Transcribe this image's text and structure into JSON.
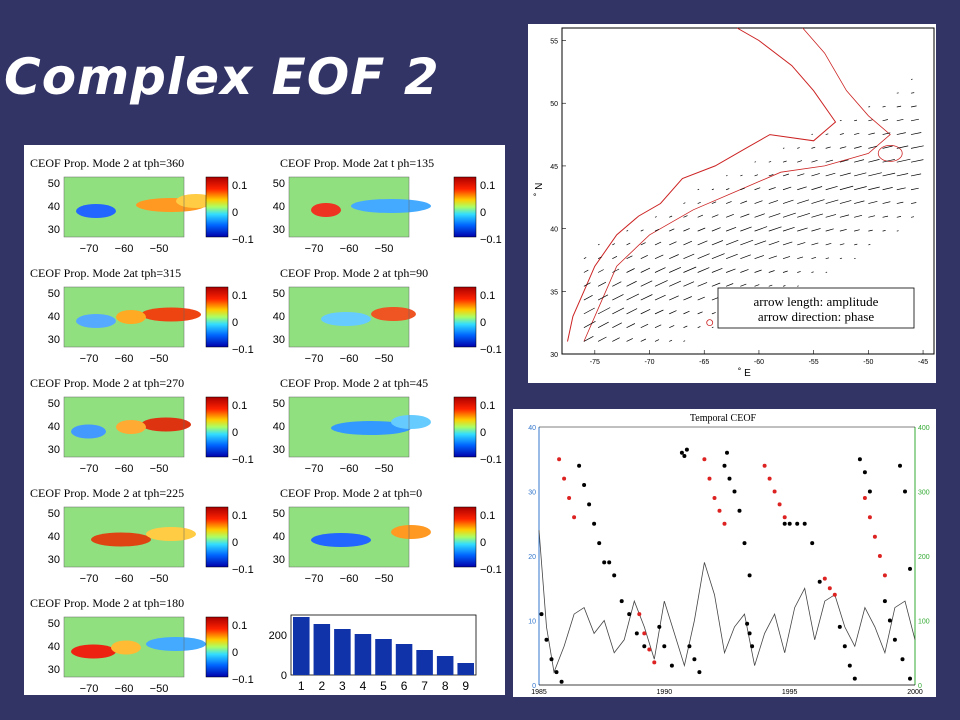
{
  "slide": {
    "title": "Complex EOF 2",
    "colors": {
      "background": "#333466",
      "map_green": "#90e080",
      "coast": "#cc2222",
      "black_series": "#000000",
      "red_series": "#dd2222",
      "bar": "#1133aa"
    }
  },
  "left_panel": {
    "colorbar_ticks": [
      "0.1",
      "0",
      "−0.1"
    ],
    "ytick_labels": [
      "50",
      "40",
      "30"
    ],
    "xtick_labels": [
      "−70",
      "−60",
      "−50"
    ],
    "maps": [
      {
        "title": "CEOF Prop. Mode 2 at tph=360"
      },
      {
        "title": "CEOF Prop. Mode 2at t ph=135"
      },
      {
        "title": "CEOF Prop. Mode 2at tph=315"
      },
      {
        "title": "CEOF Prop. Mode 2 at tph=90"
      },
      {
        "title": "CEOF Prop. Mode 2 at  tph=270"
      },
      {
        "title": "CEOF Prop. Mode 2 at tph=45"
      },
      {
        "title": "CEOF Prop. Mode 2 at tph=225"
      },
      {
        "title": "CEOF Prop. Mode 2 at tph=0"
      },
      {
        "title": "CEOF Prop. Mode 2 at tph=180"
      }
    ]
  },
  "map_panel": {
    "ylabel": "˚ N",
    "xlabel": "˚ E",
    "legend_line1": "arrow length:  amplitude",
    "legend_line2": "arrow direction: phase"
  },
  "temporal_panel": {
    "title": "Temporal CEOF"
  },
  "chart_data": [
    {
      "type": "bar",
      "categories": [
        "1",
        "2",
        "3",
        "4",
        "5",
        "6",
        "7",
        "8",
        "9"
      ],
      "values": [
        290,
        255,
        230,
        205,
        180,
        155,
        125,
        95,
        60
      ],
      "yticks": [
        0,
        200
      ],
      "ylim": [
        0,
        300
      ],
      "xlabel": "",
      "ylabel": ""
    },
    {
      "type": "quiver",
      "xticks": [
        -75,
        -70,
        -65,
        -60,
        -55,
        -50,
        -45
      ],
      "yticks": [
        30,
        35,
        40,
        45,
        50,
        55
      ],
      "xlim": [
        -78,
        -44
      ],
      "ylim": [
        30,
        56
      ],
      "xlabel": "˚ E",
      "ylabel": "˚ N"
    },
    {
      "type": "line",
      "title": "Temporal CEOF",
      "xticks": [
        1985,
        1990,
        1995,
        2000
      ],
      "xlim": [
        1985,
        2000
      ],
      "yticks_left": [
        0,
        10,
        20,
        30,
        40
      ],
      "ylim_left": [
        0,
        40
      ],
      "yticks_right": [
        0,
        100,
        200,
        300,
        400
      ],
      "ylim_right": [
        0,
        400
      ],
      "amplitude": {
        "x": [
          1985.0,
          1985.3,
          1985.6,
          1986.0,
          1986.4,
          1986.8,
          1987.2,
          1987.6,
          1988.0,
          1988.4,
          1988.8,
          1989.2,
          1989.6,
          1990.0,
          1990.4,
          1990.8,
          1991.2,
          1991.6,
          1992.0,
          1992.4,
          1992.8,
          1993.2,
          1993.6,
          1994.0,
          1994.4,
          1994.8,
          1995.2,
          1995.6,
          1996.0,
          1996.4,
          1996.8,
          1997.2,
          1997.6,
          1998.0,
          1998.4,
          1998.8,
          1999.2,
          1999.6,
          2000.0
        ],
        "y": [
          24,
          9,
          2,
          6,
          11,
          12,
          8,
          10,
          5,
          7,
          13,
          9,
          4,
          13,
          8,
          3,
          10,
          19,
          14,
          5,
          9,
          11,
          3,
          8,
          11,
          5,
          12,
          15,
          7,
          13,
          14,
          9,
          6,
          12,
          9,
          5,
          12,
          13,
          7
        ]
      },
      "phase": [
        {
          "color": "black",
          "x": [
            1985.1,
            1985.3,
            1985.5,
            1985.7,
            1985.9
          ],
          "y": [
            110,
            70,
            40,
            20,
            5
          ]
        },
        {
          "color": "red",
          "x": [
            1985.8,
            1986.0,
            1986.2,
            1986.4
          ],
          "y": [
            350,
            320,
            290,
            260
          ]
        },
        {
          "color": "black",
          "x": [
            1986.6,
            1986.8,
            1987.0,
            1987.2,
            1987.4,
            1987.6,
            1987.8,
            1988.0,
            1988.3,
            1988.6,
            1988.9,
            1989.2
          ],
          "y": [
            340,
            310,
            280,
            250,
            220,
            190,
            190,
            170,
            130,
            110,
            80,
            60
          ]
        },
        {
          "color": "red",
          "x": [
            1989.0,
            1989.2,
            1989.4,
            1989.6
          ],
          "y": [
            110,
            80,
            55,
            35
          ]
        },
        {
          "color": "black",
          "x": [
            1989.8,
            1990.0,
            1990.3
          ],
          "y": [
            90,
            60,
            30
          ]
        },
        {
          "color": "black",
          "x": [
            1990.7,
            1990.8,
            1990.9
          ],
          "y": [
            360,
            355,
            365
          ]
        },
        {
          "color": "black",
          "x": [
            1991.0,
            1991.2,
            1991.4
          ],
          "y": [
            60,
            40,
            20
          ]
        },
        {
          "color": "red",
          "x": [
            1991.6,
            1991.8,
            1992.0,
            1992.2,
            1992.4
          ],
          "y": [
            350,
            320,
            290,
            270,
            250
          ]
        },
        {
          "color": "black",
          "x": [
            1992.6,
            1992.8,
            1993.0,
            1993.2,
            1993.4
          ],
          "y": [
            320,
            300,
            270,
            220,
            170
          ]
        },
        {
          "color": "black",
          "x": [
            1992.4,
            1992.5
          ],
          "y": [
            340,
            360
          ]
        },
        {
          "color": "black",
          "x": [
            1993.3,
            1993.4,
            1993.5
          ],
          "y": [
            95,
            80,
            60
          ]
        },
        {
          "color": "red",
          "x": [
            1994.0,
            1994.2,
            1994.4,
            1994.6,
            1994.8
          ],
          "y": [
            340,
            320,
            300,
            280,
            260
          ]
        },
        {
          "color": "black",
          "x": [
            1994.8,
            1995.0,
            1995.3,
            1995.6,
            1995.9,
            1996.2
          ],
          "y": [
            250,
            250,
            250,
            250,
            220,
            160
          ]
        },
        {
          "color": "red",
          "x": [
            1996.4,
            1996.6,
            1996.8
          ],
          "y": [
            165,
            150,
            140
          ]
        },
        {
          "color": "black",
          "x": [
            1997.0,
            1997.2,
            1997.4,
            1997.6
          ],
          "y": [
            90,
            60,
            30,
            10
          ]
        },
        {
          "color": "black",
          "x": [
            1997.8,
            1998.0,
            1998.2
          ],
          "y": [
            350,
            330,
            300
          ]
        },
        {
          "color": "red",
          "x": [
            1998.0,
            1998.2,
            1998.4,
            1998.6,
            1998.8
          ],
          "y": [
            290,
            260,
            230,
            200,
            170
          ]
        },
        {
          "color": "black",
          "x": [
            1998.8,
            1999.0,
            1999.2,
            1999.5,
            1999.8
          ],
          "y": [
            130,
            100,
            70,
            40,
            10
          ]
        },
        {
          "color": "black",
          "x": [
            1999.4,
            1999.6,
            1999.8
          ],
          "y": [
            340,
            300,
            180
          ]
        }
      ]
    }
  ]
}
